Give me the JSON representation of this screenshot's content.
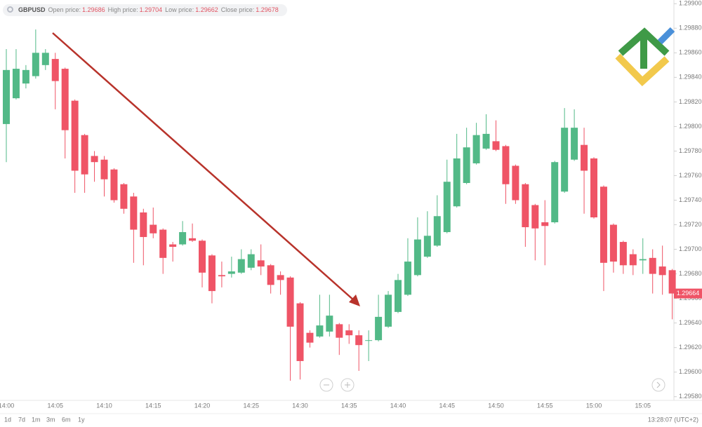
{
  "header": {
    "symbol": "GBPUSD",
    "items": [
      {
        "label": "Open price:",
        "value": 1.29686
      },
      {
        "label": "High price:",
        "value": 1.29704
      },
      {
        "label": "Low price:",
        "value": 1.29662
      },
      {
        "label": "Close price:",
        "value": 1.29678
      }
    ]
  },
  "chart_data": {
    "type": "candlestick",
    "up_color": "#52b987",
    "down_color": "#ef5466",
    "categories": [
      "14:00",
      null,
      null,
      null,
      null,
      "14:05",
      null,
      null,
      null,
      null,
      "14:10",
      null,
      null,
      null,
      null,
      "14:15",
      null,
      null,
      null,
      null,
      "14:20",
      null,
      null,
      null,
      null,
      "14:25",
      null,
      null,
      null,
      null,
      "14:30",
      null,
      null,
      null,
      null,
      "14:35",
      null,
      null,
      null,
      null,
      "14:40",
      null,
      null,
      null,
      null,
      "14:45",
      null,
      null,
      null,
      null,
      "14:50",
      null,
      null,
      null,
      null,
      "14:55",
      null,
      null,
      null,
      null,
      "15:00",
      null,
      null,
      null,
      null,
      "15:05",
      null,
      null,
      null
    ],
    "open": [
      1.29802,
      1.29823,
      1.29835,
      1.29841,
      1.2985,
      1.29855,
      1.29847,
      1.29821,
      1.29793,
      1.29776,
      1.29773,
      1.29765,
      1.29753,
      1.29743,
      1.2973,
      1.2972,
      1.29716,
      1.29704,
      1.29704,
      1.29709,
      1.29707,
      1.29695,
      1.29679,
      1.2968,
      1.29681,
      1.29685,
      1.29691,
      1.29687,
      1.29679,
      1.29677,
      1.29656,
      1.29632,
      1.29629,
      1.29633,
      1.29639,
      1.29634,
      1.2963,
      1.29626,
      1.29626,
      1.29637,
      1.29649,
      1.29663,
      1.29679,
      1.29694,
      1.29703,
      1.29714,
      1.29735,
      1.29754,
      1.2977,
      1.29782,
      1.29788,
      1.29784,
      1.29768,
      1.29753,
      1.29736,
      1.29722,
      1.29722,
      1.29747,
      1.29773,
      1.29785,
      1.29774,
      1.29751,
      1.2972,
      1.29706,
      1.29696,
      1.29691,
      1.29693,
      1.29686,
      1.29683
    ],
    "high": [
      1.29863,
      1.29863,
      1.2985,
      1.29879,
      1.29863,
      1.2986,
      1.29848,
      1.29822,
      1.29794,
      1.2978,
      1.29776,
      1.29766,
      1.29754,
      1.29746,
      1.29733,
      1.29734,
      1.29717,
      1.29706,
      1.29723,
      1.29721,
      1.29708,
      1.29696,
      1.2969,
      1.29694,
      1.297,
      1.297,
      1.29704,
      1.29688,
      1.29682,
      1.29678,
      1.29657,
      1.29634,
      1.29663,
      1.29663,
      1.2964,
      1.29639,
      1.29634,
      1.29634,
      1.29663,
      1.29666,
      1.2968,
      1.29709,
      1.29726,
      1.29731,
      1.29744,
      1.29773,
      1.29794,
      1.29799,
      1.29803,
      1.2981,
      1.29805,
      1.29785,
      1.29769,
      1.29754,
      1.29737,
      1.2974,
      1.29772,
      1.29815,
      1.29814,
      1.29799,
      1.29775,
      1.29752,
      1.29721,
      1.29707,
      1.297,
      1.29709,
      1.297,
      1.29703,
      1.29684
    ],
    "low": [
      1.29771,
      1.29822,
      1.29831,
      1.29839,
      1.29846,
      1.29814,
      1.29774,
      1.29746,
      1.29746,
      1.29755,
      1.29743,
      1.29738,
      1.29729,
      1.29689,
      1.29687,
      1.29709,
      1.2968,
      1.2969,
      1.29703,
      1.29706,
      1.29669,
      1.29656,
      1.29669,
      1.29677,
      1.2968,
      1.29683,
      1.29679,
      1.29664,
      1.29663,
      1.29593,
      1.29594,
      1.2962,
      1.29628,
      1.29629,
      1.29614,
      1.29623,
      1.29601,
      1.29609,
      1.29625,
      1.29636,
      1.29648,
      1.29662,
      1.29678,
      1.29693,
      1.29702,
      1.29713,
      1.29734,
      1.29753,
      1.29769,
      1.29781,
      1.2978,
      1.29737,
      1.29737,
      1.29702,
      1.29691,
      1.29687,
      1.29721,
      1.29746,
      1.29772,
      1.29729,
      1.29725,
      1.29666,
      1.29681,
      1.2968,
      1.29679,
      1.2968,
      1.29664,
      1.29663,
      1.29643
    ],
    "close": [
      1.29846,
      1.29847,
      1.29846,
      1.2986,
      1.2986,
      1.29837,
      1.29797,
      1.29764,
      1.29761,
      1.29771,
      1.29757,
      1.2974,
      1.29733,
      1.29716,
      1.2971,
      1.29713,
      1.29693,
      1.29702,
      1.29714,
      1.29707,
      1.29681,
      1.29666,
      1.29678,
      1.29682,
      1.29692,
      1.29696,
      1.29686,
      1.29671,
      1.29675,
      1.29637,
      1.29609,
      1.29624,
      1.29638,
      1.29646,
      1.29628,
      1.2963,
      1.29622,
      1.29626,
      1.29645,
      1.29663,
      1.29675,
      1.2969,
      1.29708,
      1.29711,
      1.29727,
      1.29755,
      1.29774,
      1.29783,
      1.29793,
      1.29794,
      1.29781,
      1.29753,
      1.2974,
      1.29718,
      1.29717,
      1.29719,
      1.29771,
      1.29799,
      1.29799,
      1.29764,
      1.29726,
      1.29689,
      1.2969,
      1.29687,
      1.29687,
      1.29692,
      1.2968,
      1.29679,
      1.29664
    ],
    "ylim": [
      1.29577,
      1.29903
    ],
    "yticks": [
      {
        "value": 1.2958,
        "label": "1.29580"
      },
      {
        "value": 1.296,
        "label": "1.29600"
      },
      {
        "value": 1.2962,
        "label": "1.29620"
      },
      {
        "value": 1.2964,
        "label": "1.29640"
      },
      {
        "value": 1.2966,
        "label": "1.29660"
      },
      {
        "value": 1.2968,
        "label": "1.29680"
      },
      {
        "value": 1.297,
        "label": "1.29700"
      },
      {
        "value": 1.2972,
        "label": "1.29720"
      },
      {
        "value": 1.2974,
        "label": "1.29740"
      },
      {
        "value": 1.2976,
        "label": "1.29760"
      },
      {
        "value": 1.2978,
        "label": "1.29780"
      },
      {
        "value": 1.298,
        "label": "1.29800"
      },
      {
        "value": 1.2982,
        "label": "1.29820"
      },
      {
        "value": 1.2984,
        "label": "1.29840"
      },
      {
        "value": 1.2986,
        "label": "1.29860"
      },
      {
        "value": 1.2988,
        "label": "1.29880"
      },
      {
        "value": 1.299,
        "label": "1.29900"
      }
    ],
    "grid": false
  },
  "footer": {
    "range_buttons": [
      "1d",
      "7d",
      "1m",
      "3m",
      "6m",
      "1y"
    ],
    "timestamp": "13:28:07 (UTC+2)"
  }
}
